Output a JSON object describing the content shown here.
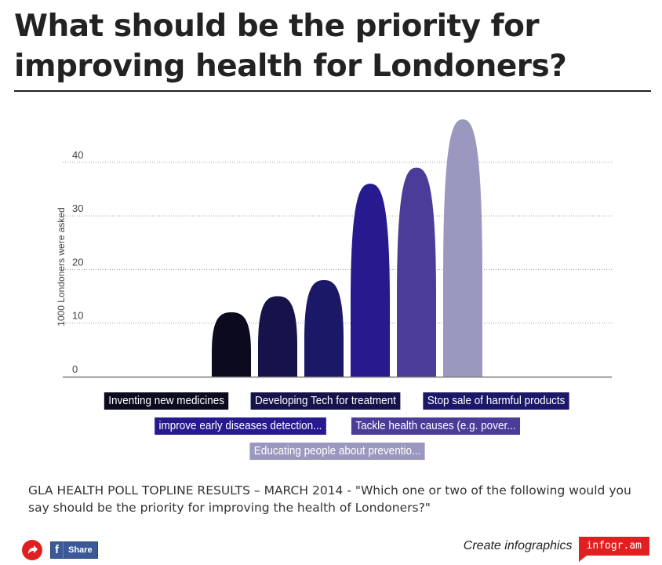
{
  "title": "What should be the priority for improving health for Londoners?",
  "subtitle": "GLA HEALTH POLL TOPLINE RESULTS – MARCH 2014 - \"Which one or two of the following would you say should be the priority for improving the health of Londoners?\"",
  "footer": {
    "share_label": "Share",
    "fb_glyph": "f",
    "create_text": "Create infographics",
    "brand": "infogr.am"
  },
  "colors": {
    "accent": "#e02020",
    "facebook": "#3b5998"
  },
  "chart_data": {
    "type": "bar",
    "ylabel": "1000 Londoners were asked",
    "ylim": [
      0,
      48
    ],
    "yticks": [
      0,
      10,
      20,
      30,
      40
    ],
    "grid": true,
    "legend_position": "bottom",
    "categories": [
      "Inventing new medicines",
      "Developing Tech for treatment",
      "Stop sale of harmful products",
      "improve early diseases detection...",
      "Tackle health causes (e.g. pover...",
      "Educating people about preventio..."
    ],
    "values": [
      12,
      15,
      18,
      36,
      39,
      48
    ],
    "colors": [
      "#0c0a1e",
      "#16124a",
      "#1c1868",
      "#261a8e",
      "#4a3c98",
      "#9b98c0"
    ]
  }
}
